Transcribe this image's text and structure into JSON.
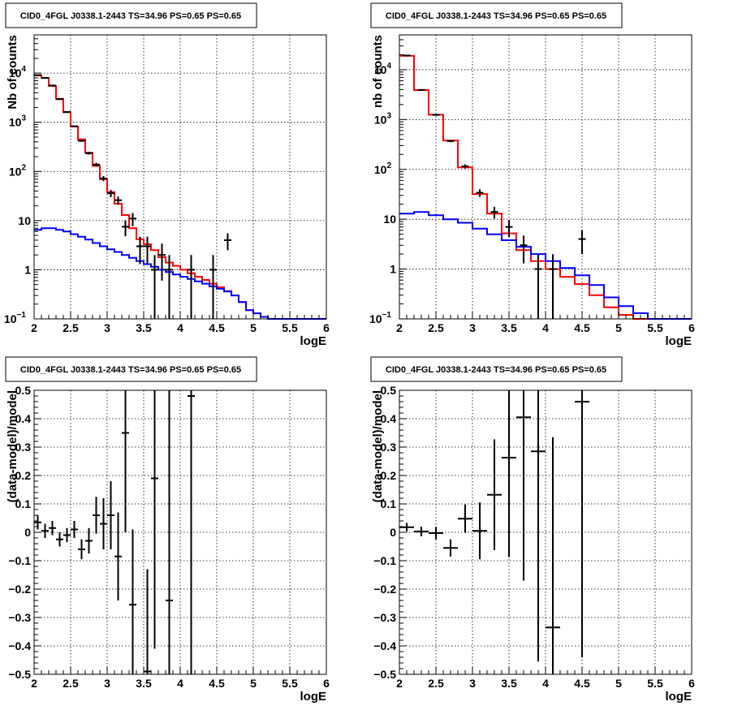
{
  "panels": [
    {
      "title": "CID0_4FGL J0338.1-2443 TS=34.96 PS=0.65 PS=0.65",
      "xlabel": "logE",
      "ylabel": "Nb of counts",
      "yscale": "log",
      "xlim": [
        2,
        6
      ],
      "ylim": [
        0.1,
        60000
      ],
      "xticks": [
        "2",
        "2.5",
        "3",
        "3.5",
        "4",
        "4.5",
        "5",
        "5.5",
        "6"
      ],
      "yticks": [
        {
          "v": 0.1,
          "t": "10",
          "sup": "−1"
        },
        {
          "v": 1,
          "t": "1",
          "sup": ""
        },
        {
          "v": 10,
          "t": "10",
          "sup": ""
        },
        {
          "v": 100,
          "t": "10",
          "sup": "2"
        },
        {
          "v": 1000,
          "t": "10",
          "sup": "3"
        },
        {
          "v": 10000,
          "t": "10",
          "sup": "4"
        }
      ]
    },
    {
      "title": "CID0_4FGL J0338.1-2443 TS=34.96 PS=0.65 PS=0.65",
      "xlabel": "logE",
      "ylabel": "nb of counts",
      "yscale": "log",
      "xlim": [
        2,
        6
      ],
      "ylim": [
        0.1,
        50000
      ],
      "xticks": [
        "2",
        "2.5",
        "3",
        "3.5",
        "4",
        "4.5",
        "5",
        "5.5",
        "6"
      ],
      "yticks": [
        {
          "v": 0.1,
          "t": "10",
          "sup": "−1"
        },
        {
          "v": 1,
          "t": "1",
          "sup": ""
        },
        {
          "v": 10,
          "t": "10",
          "sup": ""
        },
        {
          "v": 100,
          "t": "10",
          "sup": "2"
        },
        {
          "v": 1000,
          "t": "10",
          "sup": "3"
        },
        {
          "v": 10000,
          "t": "10",
          "sup": "4"
        }
      ]
    },
    {
      "title": "CID0_4FGL J0338.1-2443 TS=34.96 PS=0.65 PS=0.65",
      "xlabel": "logE",
      "ylabel": "(data-model)/model",
      "yscale": "linear",
      "xlim": [
        2,
        6
      ],
      "ylim": [
        -0.5,
        0.5
      ],
      "xticks": [
        "2",
        "2.5",
        "3",
        "3.5",
        "4",
        "4.5",
        "5",
        "5.5",
        "6"
      ],
      "yticks": [
        {
          "v": -0.5,
          "t": "−0.5"
        },
        {
          "v": -0.4,
          "t": "−0.4"
        },
        {
          "v": -0.3,
          "t": "−0.3"
        },
        {
          "v": -0.2,
          "t": "−0.2"
        },
        {
          "v": -0.1,
          "t": "−0.1"
        },
        {
          "v": 0,
          "t": "0"
        },
        {
          "v": 0.1,
          "t": "0.1"
        },
        {
          "v": 0.2,
          "t": "0.2"
        },
        {
          "v": 0.3,
          "t": "0.3"
        },
        {
          "v": 0.4,
          "t": "0.4"
        },
        {
          "v": 0.5,
          "t": "0.5"
        }
      ]
    },
    {
      "title": "CID0_4FGL J0338.1-2443 TS=34.96 PS=0.65 PS=0.65",
      "xlabel": "logE",
      "ylabel": "(data-model)/model",
      "yscale": "linear",
      "xlim": [
        2,
        6
      ],
      "ylim": [
        -0.5,
        0.5
      ],
      "xticks": [
        "2",
        "2.5",
        "3",
        "3.5",
        "4",
        "4.5",
        "5",
        "5.5",
        "6"
      ],
      "yticks": [
        {
          "v": -0.5,
          "t": "−0.5"
        },
        {
          "v": -0.4,
          "t": "−0.4"
        },
        {
          "v": -0.3,
          "t": "−0.3"
        },
        {
          "v": -0.2,
          "t": "−0.2"
        },
        {
          "v": -0.1,
          "t": "−0.1"
        },
        {
          "v": 0,
          "t": "0"
        },
        {
          "v": 0.1,
          "t": "0.1"
        },
        {
          "v": 0.2,
          "t": "0.2"
        },
        {
          "v": 0.3,
          "t": "0.3"
        },
        {
          "v": 0.4,
          "t": "0.4"
        },
        {
          "v": 0.5,
          "t": "0.5"
        }
      ]
    }
  ],
  "colors": {
    "total_model": "#ff0000",
    "background_model": "#0000ff",
    "data": "#000000"
  },
  "chart_data": [
    {
      "type": "line",
      "grid": true,
      "series": [
        {
          "role": "total_model_histogram",
          "color": "#ff0000",
          "bin_width": 0.1,
          "x_low": [
            2.0,
            2.1,
            2.2,
            2.3,
            2.4,
            2.5,
            2.6,
            2.7,
            2.8,
            2.9,
            3.0,
            3.1,
            3.2,
            3.3,
            3.4,
            3.5,
            3.6,
            3.7,
            3.8,
            3.9,
            4.0,
            4.1,
            4.2,
            4.3,
            4.4,
            4.5,
            4.6,
            4.7,
            4.8,
            4.9,
            5.0,
            5.1,
            5.2,
            5.3,
            5.4,
            5.5,
            5.6,
            5.7,
            5.8,
            5.9
          ],
          "values": [
            9000,
            8000,
            5500,
            3000,
            1600,
            820,
            450,
            240,
            130,
            70,
            38,
            22,
            13,
            7,
            4.2,
            3.3,
            2.5,
            1.8,
            1.4,
            1.2,
            1.0,
            0.85,
            0.72,
            0.62,
            0.52,
            0.44,
            0.37,
            0.3,
            0.22,
            0.15,
            0.13,
            0.11,
            0.1,
            0.1,
            0.1,
            0.1,
            0.1,
            0.1,
            0.1,
            0.1
          ]
        },
        {
          "role": "background_model_histogram",
          "color": "#0000ff",
          "bin_width": 0.1,
          "x_low": [
            2.0,
            2.1,
            2.2,
            2.3,
            2.4,
            2.5,
            2.6,
            2.7,
            2.8,
            2.9,
            3.0,
            3.1,
            3.2,
            3.3,
            3.4,
            3.5,
            3.6,
            3.7,
            3.8,
            3.9,
            4.0,
            4.1,
            4.2,
            4.3,
            4.4,
            4.5,
            4.6,
            4.7,
            4.8,
            4.9,
            5.0,
            5.1,
            5.2,
            5.3,
            5.4,
            5.5,
            5.6,
            5.7,
            5.8,
            5.9
          ],
          "values": [
            6.5,
            7.0,
            7.0,
            6.5,
            6.0,
            5.3,
            4.7,
            4.1,
            3.5,
            3.0,
            2.6,
            2.3,
            2.0,
            1.75,
            1.5,
            1.3,
            1.15,
            1.0,
            0.9,
            0.8,
            0.72,
            0.65,
            0.58,
            0.52,
            0.46,
            0.41,
            0.36,
            0.3,
            0.22,
            0.15,
            0.13,
            0.11,
            0.1,
            0.1,
            0.1,
            0.1,
            0.1,
            0.1,
            0.1,
            0.1
          ]
        },
        {
          "role": "data_points",
          "color": "#000000",
          "points": [
            {
              "x": 2.05,
              "y": 9100,
              "dy": 95
            },
            {
              "x": 2.15,
              "y": 8000,
              "dy": 90
            },
            {
              "x": 2.25,
              "y": 5600,
              "dy": 75
            },
            {
              "x": 2.35,
              "y": 2950,
              "dy": 55
            },
            {
              "x": 2.45,
              "y": 1620,
              "dy": 40
            },
            {
              "x": 2.55,
              "y": 830,
              "dy": 29
            },
            {
              "x": 2.65,
              "y": 420,
              "dy": 21
            },
            {
              "x": 2.75,
              "y": 235,
              "dy": 15
            },
            {
              "x": 2.85,
              "y": 138,
              "dy": 12
            },
            {
              "x": 2.95,
              "y": 72,
              "dy": 8.5
            },
            {
              "x": 3.05,
              "y": 36,
              "dy": 6
            },
            {
              "x": 3.15,
              "y": 26,
              "dy": 5
            },
            {
              "x": 3.25,
              "y": 7.5,
              "dy": 2.7
            },
            {
              "x": 3.35,
              "y": 11,
              "dy": 3.3
            },
            {
              "x": 3.45,
              "y": 3,
              "dy": 1.7
            },
            {
              "x": 3.55,
              "y": 3,
              "dy": 1.7
            },
            {
              "x": 3.65,
              "y": 1,
              "dy": 0.99
            },
            {
              "x": 3.75,
              "y": 2,
              "dy": 1.4
            },
            {
              "x": 3.85,
              "y": 1,
              "dy": 0.99
            },
            {
              "x": 4.15,
              "y": 1,
              "dy": 0.99
            },
            {
              "x": 4.45,
              "y": 1,
              "dy": 0.99
            },
            {
              "x": 4.65,
              "y": 4,
              "dy": 1.5
            }
          ]
        }
      ],
      "xlim": [
        2,
        6
      ],
      "ylim": [
        0.1,
        60000
      ],
      "yscale": "log"
    },
    {
      "type": "line",
      "grid": true,
      "series": [
        {
          "role": "total_model_histogram",
          "color": "#ff0000",
          "bin_width": 0.2,
          "x_low": [
            2.0,
            2.2,
            2.4,
            2.6,
            2.8,
            3.0,
            3.2,
            3.4,
            3.6,
            3.8,
            4.0,
            4.2,
            4.4,
            4.6,
            4.8,
            5.0,
            5.2,
            5.4,
            5.6,
            5.8
          ],
          "values": [
            19000,
            3900,
            1250,
            380,
            110,
            32,
            13,
            5.2,
            2.4,
            1.45,
            1.0,
            0.7,
            0.5,
            0.3,
            0.17,
            0.12,
            0.1,
            0.1,
            0.1,
            0.1
          ]
        },
        {
          "role": "background_model_histogram",
          "color": "#0000ff",
          "bin_width": 0.2,
          "x_low": [
            2.0,
            2.2,
            2.4,
            2.6,
            2.8,
            3.0,
            3.2,
            3.4,
            3.6,
            3.8,
            4.0,
            4.2,
            4.4,
            4.6,
            4.8,
            5.0,
            5.2,
            5.4,
            5.6,
            5.8
          ],
          "values": [
            13,
            14,
            12,
            10,
            8.5,
            6.5,
            5,
            3.8,
            2.8,
            2.0,
            1.45,
            1.05,
            0.75,
            0.48,
            0.27,
            0.18,
            0.13,
            0.1,
            0.1,
            0.1
          ]
        },
        {
          "role": "data_points",
          "color": "#000000",
          "points": [
            {
              "x": 2.1,
              "y": 19300,
              "dy": 140
            },
            {
              "x": 2.3,
              "y": 3930,
              "dy": 63
            },
            {
              "x": 2.5,
              "y": 1240,
              "dy": 35
            },
            {
              "x": 2.7,
              "y": 370,
              "dy": 19
            },
            {
              "x": 2.9,
              "y": 115,
              "dy": 11
            },
            {
              "x": 3.1,
              "y": 34,
              "dy": 5.8
            },
            {
              "x": 3.3,
              "y": 14,
              "dy": 3.7
            },
            {
              "x": 3.5,
              "y": 7,
              "dy": 2.6
            },
            {
              "x": 3.7,
              "y": 3,
              "dy": 1.7
            },
            {
              "x": 3.9,
              "y": 1,
              "dy": 0.99
            },
            {
              "x": 4.1,
              "y": 1,
              "dy": 0.99
            },
            {
              "x": 4.5,
              "y": 4,
              "dy": 2
            }
          ]
        }
      ],
      "xlim": [
        2,
        6
      ],
      "ylim": [
        0.1,
        50000
      ],
      "yscale": "log"
    },
    {
      "type": "scatter",
      "grid": true,
      "series": [
        {
          "role": "residual_points",
          "color": "#000000",
          "x_half_width": 0.05,
          "points": [
            {
              "x": 2.05,
              "y": 0.035,
              "dy": 0.025
            },
            {
              "x": 2.15,
              "y": 0.005,
              "dy": 0.025
            },
            {
              "x": 2.25,
              "y": 0.015,
              "dy": 0.025
            },
            {
              "x": 2.35,
              "y": -0.025,
              "dy": 0.025
            },
            {
              "x": 2.45,
              "y": -0.01,
              "dy": 0.025
            },
            {
              "x": 2.55,
              "y": 0.01,
              "dy": 0.03
            },
            {
              "x": 2.65,
              "y": -0.06,
              "dy": 0.035
            },
            {
              "x": 2.75,
              "y": -0.03,
              "dy": 0.045
            },
            {
              "x": 2.85,
              "y": 0.06,
              "dy": 0.065
            },
            {
              "x": 2.95,
              "y": 0.03,
              "dy": 0.09
            },
            {
              "x": 3.05,
              "y": 0.06,
              "dy": 0.12
            },
            {
              "x": 3.15,
              "y": -0.085,
              "dy": 0.155
            },
            {
              "x": 3.25,
              "y": 0.35,
              "dy": 0.35
            },
            {
              "x": 3.35,
              "y": -0.255,
              "dy": 0.265
            },
            {
              "x": 3.55,
              "y": -0.49,
              "dy": 0.36
            },
            {
              "x": 3.65,
              "y": 0.19,
              "dy": 0.6
            },
            {
              "x": 3.85,
              "y": -0.24,
              "dy": 0.8
            },
            {
              "x": 4.15,
              "y": 0.48,
              "dy": 1.0
            }
          ]
        }
      ],
      "xlim": [
        2,
        6
      ],
      "ylim": [
        -0.5,
        0.5
      ]
    },
    {
      "type": "scatter",
      "grid": true,
      "series": [
        {
          "role": "residual_points",
          "color": "#000000",
          "x_half_width": 0.1,
          "points": [
            {
              "x": 2.1,
              "y": 0.018,
              "dy": 0.015
            },
            {
              "x": 2.3,
              "y": 0.003,
              "dy": 0.017
            },
            {
              "x": 2.5,
              "y": -0.003,
              "dy": 0.022
            },
            {
              "x": 2.7,
              "y": -0.055,
              "dy": 0.03
            },
            {
              "x": 2.9,
              "y": 0.048,
              "dy": 0.05
            },
            {
              "x": 3.1,
              "y": 0.005,
              "dy": 0.1
            },
            {
              "x": 3.3,
              "y": 0.132,
              "dy": 0.195
            },
            {
              "x": 3.5,
              "y": 0.263,
              "dy": 0.35
            },
            {
              "x": 3.7,
              "y": 0.405,
              "dy": 0.575
            },
            {
              "x": 3.9,
              "y": 0.285,
              "dy": 0.74
            },
            {
              "x": 4.1,
              "y": -0.335,
              "dy": 0.67
            },
            {
              "x": 4.5,
              "y": 0.46,
              "dy": 0.9
            }
          ]
        }
      ],
      "xlim": [
        2,
        6
      ],
      "ylim": [
        -0.5,
        0.5
      ]
    }
  ]
}
